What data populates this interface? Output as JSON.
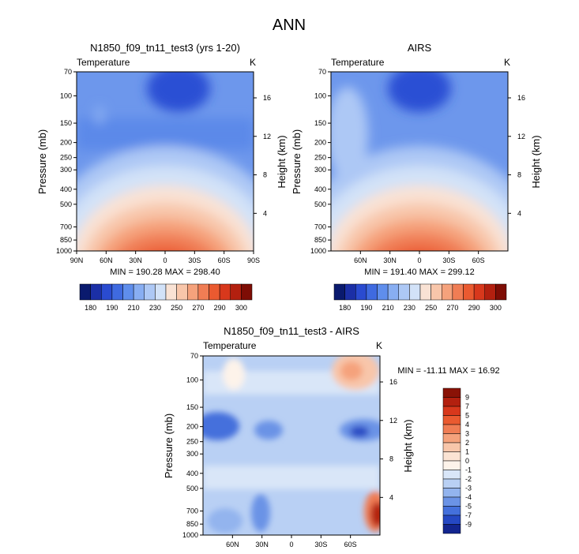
{
  "title": "ANN",
  "panels": [
    {
      "title": "N1850_f09_tn11_test3 (yrs 1-20)",
      "variable": "Temperature",
      "units": "K",
      "min_max": "MIN = 190.28  MAX = 298.40",
      "x_ticks": [
        "90N",
        "60N",
        "30N",
        "0",
        "30S",
        "60S",
        "90S"
      ]
    },
    {
      "title": "AIRS",
      "variable": "Temperature",
      "units": "K",
      "min_max": "MIN = 191.40  MAX = 299.12",
      "x_ticks": [
        "60N",
        "30N",
        "0",
        "30S",
        "60S"
      ]
    },
    {
      "title": "N1850_f09_tn11_test3 - AIRS",
      "variable": "Temperature",
      "units": "K",
      "min_max": "MIN = -11.11  MAX = 16.92",
      "x_ticks": [
        "60N",
        "30N",
        "0",
        "30S",
        "60S"
      ]
    }
  ],
  "axes": {
    "ylabel_left": "Pressure (mb)",
    "ylabel_right": "Height (km)",
    "pressure_ticks": [
      "70",
      "100",
      "150",
      "200",
      "250",
      "300",
      "400",
      "500",
      "700",
      "850",
      "1000"
    ],
    "height_ticks": [
      "4",
      "8",
      "12",
      "16"
    ]
  },
  "colorbar_abs": {
    "labels": [
      "180",
      "190",
      "210",
      "230",
      "250",
      "270",
      "290",
      "300"
    ],
    "colors": [
      "#0a1a6e",
      "#1b2fa6",
      "#2a4bd0",
      "#3f6ae0",
      "#5f8eec",
      "#88aef2",
      "#adc8f5",
      "#d2e2f8",
      "#f9e2d4",
      "#f8c6aa",
      "#f5a27c",
      "#f07d54",
      "#ea5a30",
      "#d8381c",
      "#b3200f",
      "#7e0d05"
    ]
  },
  "colorbar_diff": {
    "labels": [
      "9",
      "7",
      "5",
      "4",
      "3",
      "2",
      "1",
      "0",
      "-1",
      "-2",
      "-3",
      "-4",
      "-5",
      "-7",
      "-9"
    ],
    "colors": [
      "#8a1206",
      "#b3200f",
      "#d8381c",
      "#ea5a30",
      "#f07d54",
      "#f5a27c",
      "#f8c6aa",
      "#fbe3d3",
      "#fdf3ea",
      "#d9e6f8",
      "#b9d0f4",
      "#93b4ee",
      "#6b93e6",
      "#4470dc",
      "#2548c3",
      "#13258f"
    ]
  },
  "chart_data": [
    {
      "type": "heatmap",
      "title": "N1850_f09_tn11_test3 (yrs 1-20)",
      "field": "Temperature",
      "units": "K",
      "x_range": [
        "90N",
        "90S"
      ],
      "pressure_range_mb": [
        1000,
        70
      ],
      "min": 190.28,
      "max": 298.4,
      "contour_levels": [
        180,
        190,
        200,
        210,
        220,
        230,
        240,
        250,
        260,
        270,
        280,
        290,
        300
      ]
    },
    {
      "type": "heatmap",
      "title": "AIRS",
      "field": "Temperature",
      "units": "K",
      "pressure_range_mb": [
        1000,
        70
      ],
      "min": 191.4,
      "max": 299.12,
      "contour_levels": [
        180,
        190,
        200,
        210,
        220,
        230,
        240,
        250,
        260,
        270,
        280,
        290,
        300
      ]
    },
    {
      "type": "heatmap",
      "title": "N1850_f09_tn11_test3 - AIRS",
      "field": "Temperature difference",
      "units": "K",
      "pressure_range_mb": [
        1000,
        70
      ],
      "min": -11.11,
      "max": 16.92,
      "contour_levels": [
        -9,
        -7,
        -5,
        -4,
        -3,
        -2,
        -1,
        0,
        1,
        2,
        3,
        4,
        5,
        7,
        9
      ]
    }
  ]
}
